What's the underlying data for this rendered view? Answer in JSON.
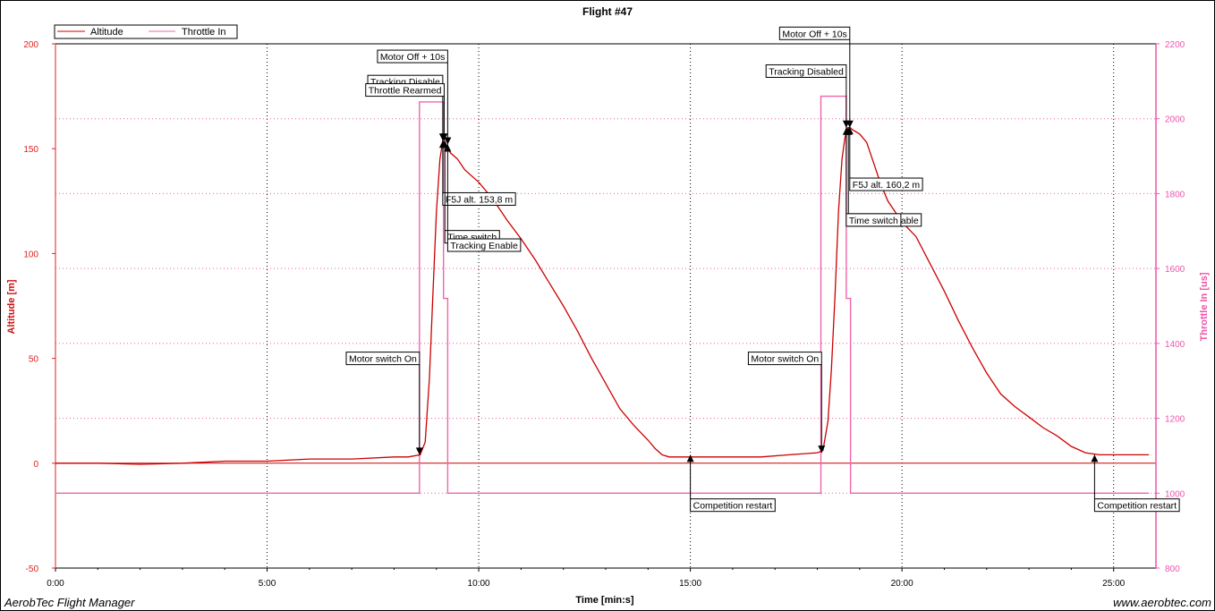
{
  "chart_data": {
    "type": "line",
    "title": "Flight #47",
    "xlabel": "Time [min:s]",
    "ylabel_left": "Altitude [m]",
    "ylabel_right": "Throttle In [us]",
    "x_ticks": [
      "0:00",
      "5:00",
      "10:00",
      "15:00",
      "20:00",
      "25:00"
    ],
    "y_left_ticks": [
      "200",
      "150",
      "100",
      "50",
      "0",
      "-50"
    ],
    "y_right_ticks": [
      "2200",
      "2000",
      "1800",
      "1600",
      "1400",
      "1200",
      "1000",
      "800"
    ],
    "xlim_s": [
      0,
      1560
    ],
    "ylim_left": [
      -50,
      200
    ],
    "ylim_right": [
      800,
      2200
    ],
    "grid": true,
    "legend_position": "top-left",
    "colors": {
      "altitude": "#cc0000",
      "throttle": "#ee66aa",
      "tick_left": "#dd2222",
      "tick_right": "#ee55aa"
    },
    "series": [
      {
        "name": "Altitude",
        "axis": "left",
        "points": [
          [
            0,
            0
          ],
          [
            60,
            0
          ],
          [
            120,
            -0.5
          ],
          [
            180,
            0
          ],
          [
            240,
            1
          ],
          [
            300,
            1
          ],
          [
            360,
            2
          ],
          [
            420,
            2
          ],
          [
            480,
            3
          ],
          [
            500,
            3
          ],
          [
            517,
            4
          ],
          [
            524,
            10
          ],
          [
            530,
            40
          ],
          [
            535,
            80
          ],
          [
            540,
            120
          ],
          [
            545,
            145
          ],
          [
            549,
            153.8
          ],
          [
            553,
            152
          ],
          [
            560,
            148
          ],
          [
            570,
            145
          ],
          [
            580,
            140
          ],
          [
            590,
            137
          ],
          [
            600,
            134
          ],
          [
            620,
            126
          ],
          [
            640,
            116
          ],
          [
            660,
            107
          ],
          [
            680,
            97
          ],
          [
            700,
            86
          ],
          [
            720,
            75
          ],
          [
            740,
            63
          ],
          [
            760,
            50
          ],
          [
            780,
            38
          ],
          [
            800,
            26
          ],
          [
            820,
            18
          ],
          [
            840,
            11
          ],
          [
            850,
            7
          ],
          [
            860,
            4
          ],
          [
            870,
            3
          ],
          [
            900,
            3
          ],
          [
            960,
            3
          ],
          [
            1000,
            3
          ],
          [
            1040,
            4
          ],
          [
            1080,
            5
          ],
          [
            1088,
            6
          ],
          [
            1095,
            20
          ],
          [
            1100,
            45
          ],
          [
            1105,
            80
          ],
          [
            1110,
            120
          ],
          [
            1115,
            145
          ],
          [
            1119,
            155
          ],
          [
            1123,
            160
          ],
          [
            1126,
            160.2
          ],
          [
            1130,
            159
          ],
          [
            1140,
            157
          ],
          [
            1150,
            153
          ],
          [
            1160,
            143
          ],
          [
            1170,
            133
          ],
          [
            1180,
            125
          ],
          [
            1190,
            120
          ],
          [
            1200,
            115
          ],
          [
            1220,
            108
          ],
          [
            1240,
            95
          ],
          [
            1260,
            82
          ],
          [
            1280,
            68
          ],
          [
            1300,
            55
          ],
          [
            1320,
            43
          ],
          [
            1340,
            33
          ],
          [
            1360,
            27
          ],
          [
            1380,
            22
          ],
          [
            1400,
            17
          ],
          [
            1420,
            13
          ],
          [
            1440,
            8
          ],
          [
            1460,
            5
          ],
          [
            1480,
            4
          ],
          [
            1500,
            4
          ],
          [
            1550,
            4
          ]
        ]
      },
      {
        "name": "Throttle In",
        "axis": "right",
        "points": [
          [
            0,
            1000
          ],
          [
            516,
            1000
          ],
          [
            516,
            2045
          ],
          [
            550,
            2045
          ],
          [
            550,
            1520
          ],
          [
            556,
            1520
          ],
          [
            556,
            1000
          ],
          [
            1085,
            1000
          ],
          [
            1085,
            2060
          ],
          [
            1121,
            2060
          ],
          [
            1121,
            1520
          ],
          [
            1127,
            1520
          ],
          [
            1127,
            1000
          ],
          [
            1550,
            1000
          ]
        ]
      }
    ],
    "annotations": [
      {
        "text": "Motor switch On",
        "t": 516,
        "y": 4,
        "label_value": 50,
        "label_side": "left",
        "dir": "down"
      },
      {
        "text": "Tracking Disable",
        "t": 549,
        "y": 153.8,
        "label_value": 182,
        "label_side": "left",
        "dir": "down"
      },
      {
        "text": "Throttle Rearmed",
        "t": 551,
        "y": 153.8,
        "label_value": 178,
        "label_side": "left",
        "dir": "down"
      },
      {
        "text": "Motor Off + 10s",
        "t": 556,
        "y": 152,
        "label_value": 194,
        "label_side": "left",
        "dir": "down"
      },
      {
        "text": "F5J alt. 153,8 m",
        "t": 549,
        "y": 153.8,
        "label_value": 126,
        "label_side": "right",
        "dir": "up"
      },
      {
        "text": "Time switch",
        "t": 552,
        "y": 153.8,
        "label_value": 108,
        "label_side": "right",
        "dir": "up"
      },
      {
        "text": "Tracking Enable",
        "t": 556,
        "y": 152,
        "label_value": 104,
        "label_side": "right",
        "dir": "up"
      },
      {
        "text": "Competition restart",
        "t": 900,
        "y": 4,
        "label_value": -20,
        "label_side": "right",
        "dir": "up"
      },
      {
        "text": "Motor switch On",
        "t": 1086,
        "y": 5,
        "label_value": 50,
        "label_side": "left",
        "dir": "down"
      },
      {
        "text": "Tracking Disabled",
        "t": 1121,
        "y": 160,
        "label_value": 187,
        "label_side": "left",
        "dir": "down"
      },
      {
        "text": "Motor Off + 10s",
        "t": 1126,
        "y": 160,
        "label_value": 205,
        "label_side": "left",
        "dir": "down"
      },
      {
        "text": "F5J alt. 160,2 m",
        "t": 1126,
        "y": 160.2,
        "label_value": 133,
        "label_side": "right",
        "dir": "up"
      },
      {
        "text": "Tracking Enable",
        "t": 1124,
        "y": 160,
        "label_value": 116,
        "label_side": "right",
        "dir": "up"
      },
      {
        "text": "Time switch",
        "t": 1121,
        "y": 160,
        "label_value": 116,
        "label_side": "right",
        "dir": "up"
      },
      {
        "text": "Competition restart",
        "t": 1473,
        "y": 4,
        "label_value": -20,
        "label_side": "right",
        "dir": "up"
      }
    ]
  },
  "footer": {
    "left": "AerobTec Flight Manager",
    "right": "www.aerobtec.com"
  }
}
